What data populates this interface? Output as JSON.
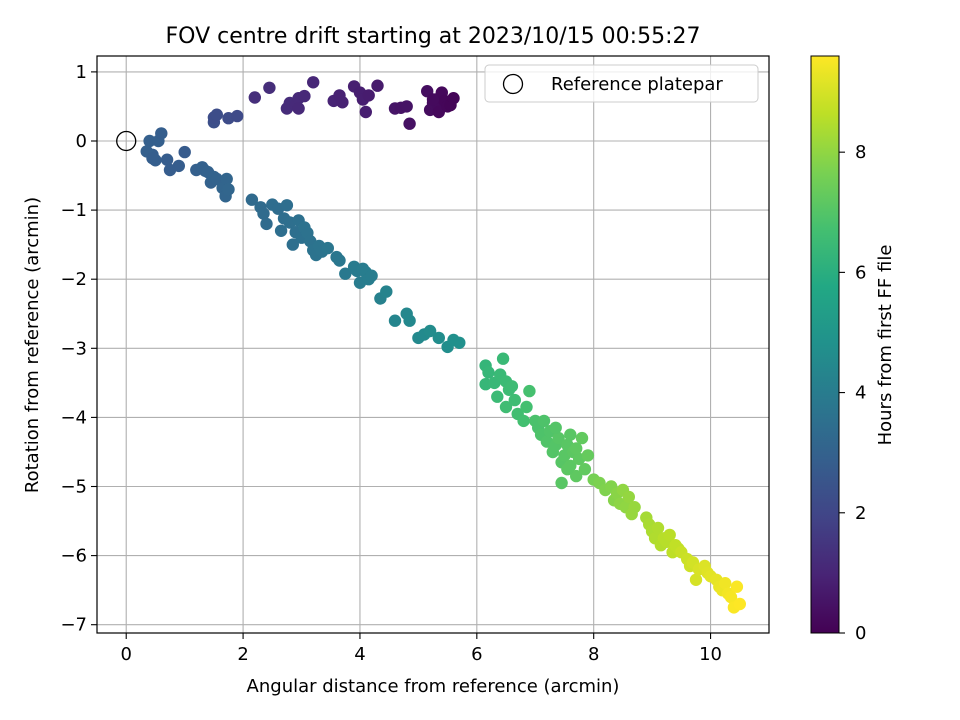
{
  "chart_data": {
    "type": "scatter",
    "title": "FOV centre drift starting at 2023/10/15 00:55:27",
    "xlabel": "Angular distance from reference (arcmin)",
    "ylabel": "Rotation from reference (arcmin)",
    "xlim": [
      -0.5,
      11.0
    ],
    "ylim": [
      -7.12,
      1.23
    ],
    "xticks": [
      0,
      2,
      4,
      6,
      8,
      10
    ],
    "yticks": [
      1,
      0,
      -1,
      -2,
      -3,
      -4,
      -5,
      -6,
      -7
    ],
    "grid": true,
    "legend": {
      "placement": "top-right",
      "entries": [
        "Reference platepar"
      ]
    },
    "reference_point": {
      "x": 0,
      "y": 0,
      "label": "Reference platepar"
    },
    "colorbar": {
      "label": "Hours from first FF file",
      "range": [
        0,
        9.6
      ],
      "ticks": [
        0,
        2,
        4,
        6,
        8
      ],
      "colormap": "viridis"
    },
    "point_color_dimension": "Hours from first FF file",
    "points": [
      [
        2.2,
        0.63,
        1.3
      ],
      [
        2.45,
        0.77,
        1.25
      ],
      [
        2.75,
        0.47,
        1.2
      ],
      [
        2.8,
        0.55,
        1.2
      ],
      [
        2.9,
        0.52,
        1.15
      ],
      [
        2.95,
        0.62,
        1.15
      ],
      [
        3.05,
        0.65,
        1.1
      ],
      [
        3.2,
        0.85,
        1.05
      ],
      [
        2.95,
        0.47,
        1.1
      ],
      [
        3.55,
        0.58,
        0.95
      ],
      [
        3.65,
        0.66,
        0.9
      ],
      [
        3.7,
        0.56,
        0.9
      ],
      [
        3.9,
        0.79,
        0.85
      ],
      [
        4.0,
        0.7,
        0.8
      ],
      [
        4.05,
        0.6,
        0.8
      ],
      [
        4.1,
        0.42,
        0.8
      ],
      [
        4.15,
        0.66,
        0.75
      ],
      [
        4.3,
        0.8,
        0.7
      ],
      [
        4.6,
        0.47,
        0.55
      ],
      [
        4.7,
        0.48,
        0.5
      ],
      [
        4.8,
        0.5,
        0.5
      ],
      [
        4.85,
        0.25,
        0.45
      ],
      [
        5.15,
        0.72,
        0.35
      ],
      [
        5.2,
        0.45,
        0.3
      ],
      [
        5.25,
        0.55,
        0.3
      ],
      [
        5.3,
        0.6,
        0.25
      ],
      [
        5.35,
        0.5,
        0.25
      ],
      [
        5.35,
        0.42,
        0.2
      ],
      [
        5.4,
        0.7,
        0.2
      ],
      [
        5.45,
        0.58,
        0.15
      ],
      [
        5.5,
        0.5,
        0.15
      ],
      [
        5.55,
        0.52,
        0.1
      ],
      [
        5.6,
        0.62,
        0.1
      ],
      [
        5.25,
        0.6,
        0.25
      ],
      [
        1.5,
        0.27,
        2.3
      ],
      [
        1.5,
        0.34,
        2.25
      ],
      [
        1.55,
        0.38,
        2.25
      ],
      [
        1.75,
        0.33,
        2.2
      ],
      [
        1.9,
        0.36,
        2.15
      ],
      [
        0.4,
        0.0,
        2.9
      ],
      [
        0.55,
        0.0,
        2.9
      ],
      [
        0.45,
        -0.2,
        2.85
      ],
      [
        0.35,
        -0.15,
        2.9
      ],
      [
        0.6,
        0.11,
        2.85
      ],
      [
        0.7,
        -0.27,
        2.8
      ],
      [
        0.5,
        -0.28,
        2.85
      ],
      [
        0.45,
        -0.25,
        2.85
      ],
      [
        0.9,
        -0.36,
        2.8
      ],
      [
        0.75,
        -0.42,
        2.8
      ],
      [
        1.0,
        -0.16,
        2.75
      ],
      [
        1.2,
        -0.42,
        2.9
      ],
      [
        1.3,
        -0.38,
        2.95
      ],
      [
        1.35,
        -0.43,
        2.95
      ],
      [
        1.4,
        -0.45,
        3.0
      ],
      [
        1.45,
        -0.6,
        3.0
      ],
      [
        1.5,
        -0.52,
        3.05
      ],
      [
        1.55,
        -0.55,
        3.05
      ],
      [
        1.65,
        -0.68,
        3.1
      ],
      [
        1.7,
        -0.8,
        3.1
      ],
      [
        1.72,
        -0.55,
        3.1
      ],
      [
        1.75,
        -0.7,
        3.15
      ],
      [
        2.15,
        -0.85,
        3.3
      ],
      [
        2.3,
        -0.96,
        3.35
      ],
      [
        2.35,
        -1.05,
        3.35
      ],
      [
        2.4,
        -1.2,
        3.35
      ],
      [
        2.5,
        -0.92,
        3.4
      ],
      [
        2.6,
        -0.98,
        3.4
      ],
      [
        2.7,
        -1.12,
        3.45
      ],
      [
        2.75,
        -0.93,
        3.45
      ],
      [
        2.65,
        -1.3,
        3.45
      ],
      [
        2.8,
        -1.18,
        3.5
      ],
      [
        2.85,
        -1.5,
        3.5
      ],
      [
        2.9,
        -1.32,
        3.5
      ],
      [
        2.95,
        -1.15,
        3.55
      ],
      [
        3.0,
        -1.4,
        3.55
      ],
      [
        3.05,
        -1.25,
        3.6
      ],
      [
        3.1,
        -1.33,
        3.6
      ],
      [
        3.15,
        -1.45,
        3.6
      ],
      [
        3.2,
        -1.58,
        3.65
      ],
      [
        3.25,
        -1.65,
        3.65
      ],
      [
        3.3,
        -1.52,
        3.7
      ],
      [
        3.35,
        -1.6,
        3.7
      ],
      [
        3.45,
        -1.55,
        3.75
      ],
      [
        3.6,
        -1.68,
        3.8
      ],
      [
        3.65,
        -1.73,
        3.8
      ],
      [
        3.75,
        -1.92,
        3.85
      ],
      [
        3.9,
        -1.82,
        3.95
      ],
      [
        3.95,
        -1.88,
        3.95
      ],
      [
        4.0,
        -2.05,
        4.0
      ],
      [
        4.05,
        -1.85,
        4.0
      ],
      [
        4.1,
        -1.9,
        4.05
      ],
      [
        4.15,
        -2.0,
        4.05
      ],
      [
        4.2,
        -1.95,
        4.05
      ],
      [
        4.35,
        -2.28,
        4.2
      ],
      [
        4.45,
        -2.18,
        4.25
      ],
      [
        4.6,
        -2.6,
        4.35
      ],
      [
        4.8,
        -2.5,
        4.4
      ],
      [
        4.85,
        -2.6,
        4.45
      ],
      [
        5.0,
        -2.85,
        4.5
      ],
      [
        5.1,
        -2.8,
        4.55
      ],
      [
        5.2,
        -2.75,
        4.6
      ],
      [
        5.35,
        -2.85,
        4.65
      ],
      [
        5.5,
        -2.98,
        4.7
      ],
      [
        5.6,
        -2.88,
        4.75
      ],
      [
        5.7,
        -2.92,
        4.75
      ],
      [
        6.15,
        -3.25,
        6.3
      ],
      [
        6.2,
        -3.35,
        6.35
      ],
      [
        6.15,
        -3.52,
        6.35
      ],
      [
        6.3,
        -3.5,
        6.4
      ],
      [
        6.4,
        -3.38,
        6.45
      ],
      [
        6.45,
        -3.15,
        6.45
      ],
      [
        6.5,
        -3.48,
        6.5
      ],
      [
        6.35,
        -3.7,
        6.5
      ],
      [
        6.55,
        -3.6,
        6.55
      ],
      [
        6.6,
        -3.55,
        6.55
      ],
      [
        6.5,
        -3.85,
        6.6
      ],
      [
        6.65,
        -3.75,
        6.6
      ],
      [
        6.7,
        -3.95,
        6.65
      ],
      [
        6.85,
        -3.85,
        6.7
      ],
      [
        6.8,
        -4.05,
        6.7
      ],
      [
        6.9,
        -3.62,
        6.75
      ],
      [
        7.0,
        -4.05,
        6.85
      ],
      [
        7.05,
        -4.15,
        6.85
      ],
      [
        7.1,
        -4.25,
        6.9
      ],
      [
        7.15,
        -4.05,
        6.9
      ],
      [
        7.2,
        -4.35,
        6.95
      ],
      [
        7.25,
        -4.2,
        6.95
      ],
      [
        7.3,
        -4.5,
        7.0
      ],
      [
        7.35,
        -4.4,
        7.0
      ],
      [
        7.4,
        -4.3,
        7.05
      ],
      [
        7.45,
        -4.65,
        7.05
      ],
      [
        7.5,
        -4.55,
        7.1
      ],
      [
        7.55,
        -4.4,
        7.1
      ],
      [
        7.6,
        -4.7,
        7.15
      ],
      [
        7.65,
        -4.5,
        7.15
      ],
      [
        7.7,
        -4.85,
        7.2
      ],
      [
        7.75,
        -4.6,
        7.2
      ],
      [
        7.8,
        -4.3,
        7.25
      ],
      [
        7.85,
        -4.75,
        7.25
      ],
      [
        7.9,
        -4.55,
        7.3
      ],
      [
        7.45,
        -4.95,
        7.1
      ],
      [
        7.35,
        -4.15,
        7.0
      ],
      [
        7.55,
        -4.75,
        7.15
      ],
      [
        7.6,
        -4.25,
        7.1
      ],
      [
        7.7,
        -4.45,
        7.2
      ],
      [
        8.0,
        -4.9,
        7.6
      ],
      [
        8.1,
        -4.95,
        7.7
      ],
      [
        8.2,
        -5.05,
        7.75
      ],
      [
        8.3,
        -5.0,
        7.8
      ],
      [
        8.35,
        -5.2,
        7.85
      ],
      [
        8.4,
        -5.1,
        7.9
      ],
      [
        8.45,
        -5.25,
        7.95
      ],
      [
        8.5,
        -5.05,
        8.0
      ],
      [
        8.55,
        -5.3,
        8.0
      ],
      [
        8.6,
        -5.15,
        8.05
      ],
      [
        8.65,
        -5.4,
        8.1
      ],
      [
        8.7,
        -5.3,
        8.1
      ],
      [
        8.9,
        -5.45,
        8.3
      ],
      [
        8.95,
        -5.55,
        8.35
      ],
      [
        9.0,
        -5.65,
        8.4
      ],
      [
        9.05,
        -5.75,
        8.45
      ],
      [
        9.1,
        -5.6,
        8.45
      ],
      [
        9.15,
        -5.85,
        8.5
      ],
      [
        9.2,
        -5.75,
        8.55
      ],
      [
        9.25,
        -5.8,
        8.55
      ],
      [
        9.3,
        -5.7,
        8.6
      ],
      [
        9.35,
        -5.95,
        8.65
      ],
      [
        9.4,
        -5.85,
        8.7
      ],
      [
        9.45,
        -5.9,
        8.7
      ],
      [
        9.5,
        -5.95,
        8.8
      ],
      [
        9.6,
        -6.05,
        8.85
      ],
      [
        9.65,
        -6.15,
        8.9
      ],
      [
        9.7,
        -6.1,
        8.95
      ],
      [
        9.75,
        -6.35,
        9.0
      ],
      [
        9.8,
        -6.2,
        9.05
      ],
      [
        9.9,
        -6.15,
        9.1
      ],
      [
        9.95,
        -6.25,
        9.15
      ],
      [
        10.0,
        -6.3,
        9.2
      ],
      [
        10.1,
        -6.35,
        9.25
      ],
      [
        10.15,
        -6.45,
        9.3
      ],
      [
        10.2,
        -6.5,
        9.35
      ],
      [
        10.25,
        -6.4,
        9.4
      ],
      [
        10.3,
        -6.55,
        9.45
      ],
      [
        10.35,
        -6.6,
        9.5
      ],
      [
        10.4,
        -6.75,
        9.55
      ],
      [
        10.45,
        -6.45,
        9.55
      ],
      [
        10.5,
        -6.7,
        9.6
      ]
    ]
  }
}
